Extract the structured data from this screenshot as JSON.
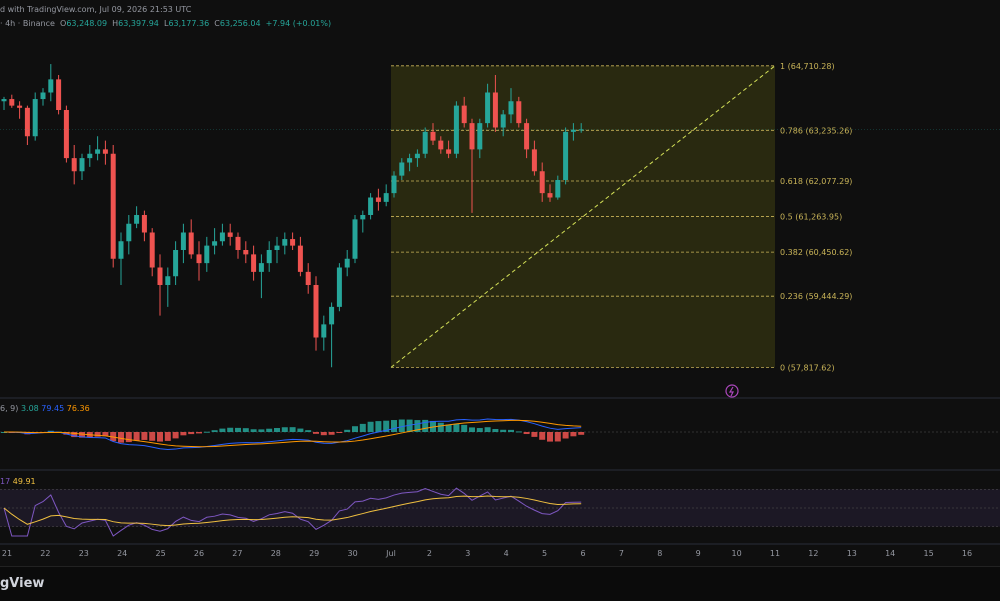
{
  "header": {
    "title": "d with TradingView.com, Jul 09, 2026 21:53 UTC",
    "symbol": "· 4h · Binance",
    "o_label": "O",
    "o": "63,248.09",
    "h_label": "H",
    "h": "63,397.94",
    "l_label": "L",
    "l": "63,177.36",
    "c_label": "C",
    "c": "63,256.04",
    "change": "+7.94 (+0.01%)"
  },
  "macd": {
    "params": "6, 9)",
    "v1": "3.08",
    "v2": "79.45",
    "v3": "76.36"
  },
  "rsi": {
    "params": "17",
    "value": "49.91"
  },
  "footer": {
    "brand": "gView"
  },
  "colors": {
    "up": "#26a69a",
    "down": "#ef5350",
    "fib": "#c9b458",
    "macd": "#2962ff",
    "signal": "#ff9800",
    "rsi": "#7e57c2",
    "rsi_ma": "#f0c040"
  },
  "chart_data": {
    "type": "candlestick",
    "x_ticks": [
      "21",
      "22",
      "23",
      "24",
      "25",
      "26",
      "27",
      "28",
      "29",
      "30",
      "Jul",
      "2",
      "3",
      "4",
      "5",
      "6",
      "7",
      "8",
      "9",
      "10",
      "11",
      "12",
      "13",
      "14",
      "15",
      "16"
    ],
    "fib_levels": [
      {
        "ratio": "1",
        "value": "64,710.28"
      },
      {
        "ratio": "0.786",
        "value": "63,235.26"
      },
      {
        "ratio": "0.618",
        "value": "62,077.29"
      },
      {
        "ratio": "0.5",
        "value": "61,263.95"
      },
      {
        "ratio": "0.382",
        "value": "60,450.62"
      },
      {
        "ratio": "0.236",
        "value": "59,444.29"
      },
      {
        "ratio": "0",
        "value": "57,817.62"
      }
    ],
    "candles": [
      [
        63900,
        64000,
        63700,
        63950
      ],
      [
        63950,
        64050,
        63750,
        63800
      ],
      [
        63800,
        63900,
        63500,
        63750
      ],
      [
        63750,
        63800,
        62900,
        63100
      ],
      [
        63100,
        64100,
        63000,
        63950
      ],
      [
        63950,
        64200,
        63800,
        64100
      ],
      [
        64100,
        64750,
        63900,
        64400
      ],
      [
        64400,
        64500,
        63600,
        63700
      ],
      [
        63700,
        63800,
        62500,
        62600
      ],
      [
        62600,
        62900,
        62000,
        62300
      ],
      [
        62300,
        62700,
        62100,
        62600
      ],
      [
        62600,
        62900,
        62400,
        62700
      ],
      [
        62700,
        63100,
        62550,
        62800
      ],
      [
        62800,
        63000,
        62450,
        62700
      ],
      [
        62700,
        62900,
        60100,
        60300
      ],
      [
        60300,
        60900,
        59700,
        60700
      ],
      [
        60700,
        61300,
        60400,
        61100
      ],
      [
        61100,
        61500,
        61000,
        61300
      ],
      [
        61300,
        61400,
        60700,
        60900
      ],
      [
        60900,
        61000,
        59900,
        60100
      ],
      [
        60100,
        60400,
        59000,
        59700
      ],
      [
        59700,
        60100,
        59200,
        59900
      ],
      [
        59900,
        60700,
        59700,
        60500
      ],
      [
        60500,
        61100,
        60200,
        60900
      ],
      [
        60900,
        61200,
        60300,
        60400
      ],
      [
        60400,
        60700,
        59800,
        60200
      ],
      [
        60200,
        60800,
        60000,
        60600
      ],
      [
        60600,
        61000,
        60400,
        60700
      ],
      [
        60700,
        61100,
        60600,
        60900
      ],
      [
        60900,
        61100,
        60600,
        60800
      ],
      [
        60800,
        60900,
        60300,
        60500
      ],
      [
        60500,
        60700,
        60200,
        60400
      ],
      [
        60400,
        60600,
        59800,
        60000
      ],
      [
        60000,
        60400,
        59400,
        60200
      ],
      [
        60200,
        60700,
        60000,
        60500
      ],
      [
        60500,
        60800,
        60200,
        60600
      ],
      [
        60600,
        60900,
        60400,
        60750
      ],
      [
        60750,
        60900,
        60500,
        60600
      ],
      [
        60600,
        60800,
        59900,
        60000
      ],
      [
        60000,
        60200,
        59500,
        59700
      ],
      [
        59700,
        59900,
        58200,
        58500
      ],
      [
        58500,
        59000,
        58200,
        58800
      ],
      [
        58800,
        59300,
        57820,
        59200
      ],
      [
        59200,
        60200,
        59100,
        60100
      ],
      [
        60100,
        60500,
        59900,
        60300
      ],
      [
        60300,
        61300,
        60200,
        61200
      ],
      [
        61200,
        61400,
        60900,
        61300
      ],
      [
        61300,
        61800,
        61200,
        61700
      ],
      [
        61700,
        61900,
        61400,
        61600
      ],
      [
        61600,
        62000,
        61500,
        61800
      ],
      [
        61800,
        62300,
        61700,
        62200
      ],
      [
        62200,
        62600,
        62100,
        62500
      ],
      [
        62500,
        62700,
        62300,
        62600
      ],
      [
        62600,
        62800,
        62400,
        62700
      ],
      [
        62700,
        63300,
        62600,
        63200
      ],
      [
        63200,
        63400,
        62900,
        63000
      ],
      [
        63000,
        63100,
        62700,
        62800
      ],
      [
        62800,
        63000,
        62600,
        62700
      ],
      [
        62700,
        63900,
        62600,
        63800
      ],
      [
        63800,
        64000,
        63300,
        63400
      ],
      [
        63400,
        63500,
        61350,
        62800
      ],
      [
        62800,
        63500,
        62600,
        63400
      ],
      [
        63400,
        64300,
        63300,
        64100
      ],
      [
        64100,
        64500,
        63200,
        63300
      ],
      [
        63300,
        63700,
        63100,
        63600
      ],
      [
        63600,
        64200,
        63400,
        63900
      ],
      [
        63900,
        64000,
        63300,
        63400
      ],
      [
        63400,
        63500,
        62600,
        62800
      ],
      [
        62800,
        63000,
        62200,
        62300
      ],
      [
        62300,
        62500,
        61600,
        61800
      ],
      [
        61800,
        62000,
        61600,
        61700
      ],
      [
        61700,
        62200,
        61650,
        62100
      ],
      [
        62100,
        63300,
        62000,
        63200
      ],
      [
        63200,
        63400,
        63000,
        63250
      ],
      [
        63250,
        63400,
        63180,
        63256
      ]
    ],
    "macd_series": "MACD histogram with MACD and signal lines",
    "rsi_series": "RSI with moving average"
  }
}
